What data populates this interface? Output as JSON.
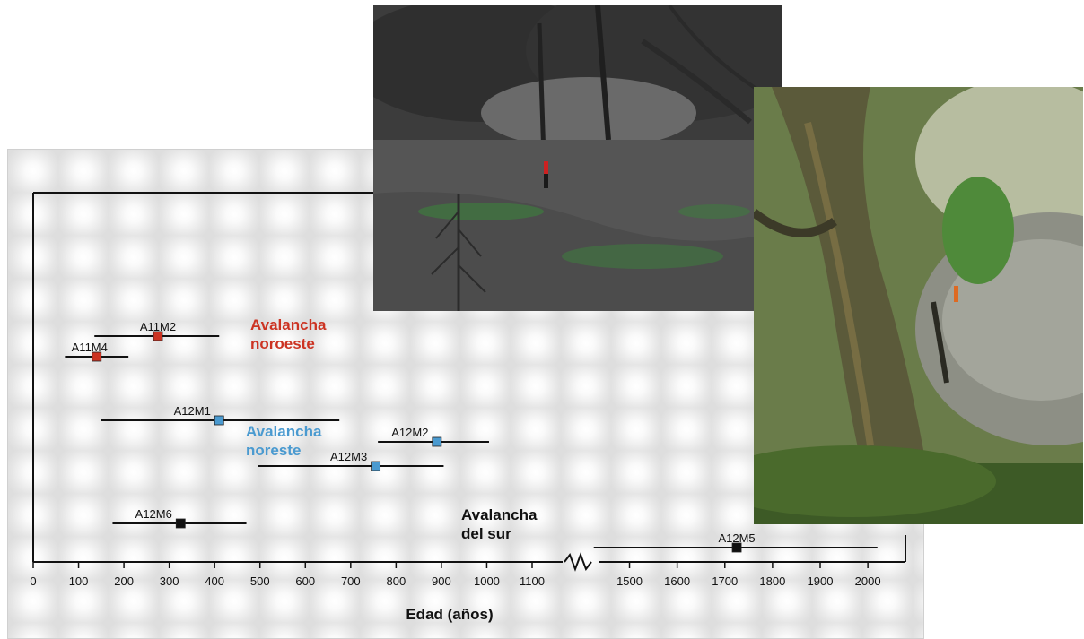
{
  "chart_data": {
    "type": "scatter",
    "subtype": "interval-with-point",
    "xlabel": "Edad (años)",
    "ylabel": "",
    "axis_break": true,
    "x_ticks_left": [
      0,
      100,
      200,
      300,
      400,
      500,
      600,
      700,
      800,
      900,
      1000,
      1100
    ],
    "x_ticks_right": [
      1500,
      1600,
      1700,
      1800,
      1900,
      2000
    ],
    "groups": [
      {
        "label": "Avalancha noroeste",
        "label_line1": "Avalancha",
        "label_line2": "noroeste",
        "color": "#cc3322"
      },
      {
        "label": "Avalancha noreste",
        "label_line1": "Avalancha",
        "label_line2": "noreste",
        "color": "#4a9ad0"
      },
      {
        "label": "Avalancha del sur",
        "label_line1": "Avalancha",
        "label_line2": "del sur",
        "color": "#111111"
      }
    ],
    "samples": [
      {
        "id": "A11M2",
        "group": 0,
        "age": 275,
        "min": 135,
        "max": 410
      },
      {
        "id": "A11M4",
        "group": 0,
        "age": 140,
        "min": 70,
        "max": 210
      },
      {
        "id": "A12M1",
        "group": 1,
        "age": 410,
        "min": 150,
        "max": 675
      },
      {
        "id": "A12M2",
        "group": 1,
        "age": 890,
        "min": 760,
        "max": 1005
      },
      {
        "id": "A12M3",
        "group": 1,
        "age": 755,
        "min": 495,
        "max": 905
      },
      {
        "id": "A12M6",
        "group": 2,
        "age": 325,
        "min": 175,
        "max": 470
      },
      {
        "id": "A12M5",
        "group": 2,
        "age": 1725,
        "min": 1425,
        "max": 2020
      }
    ]
  },
  "photos": {
    "left": {
      "name": "forest-clearing-photo",
      "tone": "desaturated"
    },
    "right": {
      "name": "tree-trunk-boulder-photo",
      "tone": "color"
    }
  }
}
